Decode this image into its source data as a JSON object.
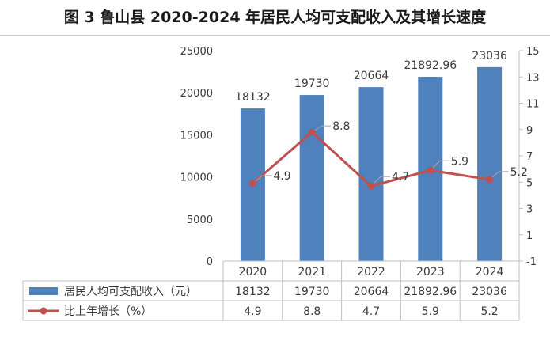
{
  "chart_data": {
    "type": "bar",
    "title": "图 3 鲁山县 2020-2024 年居民人均可支配收入及其增长速度",
    "categories": [
      "2020",
      "2021",
      "2022",
      "2023",
      "2024"
    ],
    "series": [
      {
        "name": "居民人均可支配收入（元）",
        "type": "bar",
        "axis": "left",
        "color": "#4f81bd",
        "values": [
          18132,
          19730,
          20664,
          21892.96,
          23036
        ],
        "labels": [
          "18132",
          "19730",
          "20664",
          "21892.96",
          "23036"
        ]
      },
      {
        "name": "比上年增长（%）",
        "type": "line",
        "axis": "right",
        "color": "#c0504d",
        "values": [
          4.9,
          8.8,
          4.7,
          5.9,
          5.2
        ],
        "labels": [
          "4.9",
          "8.8",
          "4.7",
          "5.9",
          "5.2"
        ]
      }
    ],
    "y_left": {
      "min": 0,
      "max": 25000,
      "ticks": [
        0,
        5000,
        10000,
        15000,
        20000,
        25000
      ],
      "tick_labels": [
        "0",
        "5000",
        "10000",
        "15000",
        "20000",
        "25000"
      ]
    },
    "y_right": {
      "min": -1,
      "max": 15,
      "ticks": [
        -1,
        1,
        3,
        5,
        7,
        9,
        11,
        13,
        15
      ],
      "tick_labels": [
        "-1",
        "1",
        "3",
        "5",
        "7",
        "9",
        "11",
        "13",
        "15"
      ]
    },
    "grid": false,
    "data_table": true,
    "table_rows": [
      {
        "series_index": 0,
        "cells": [
          "18132",
          "19730",
          "20664",
          "21892.96",
          "23036"
        ]
      },
      {
        "series_index": 1,
        "cells": [
          "4.9",
          "8.8",
          "4.7",
          "5.9",
          "5.2"
        ]
      }
    ]
  }
}
